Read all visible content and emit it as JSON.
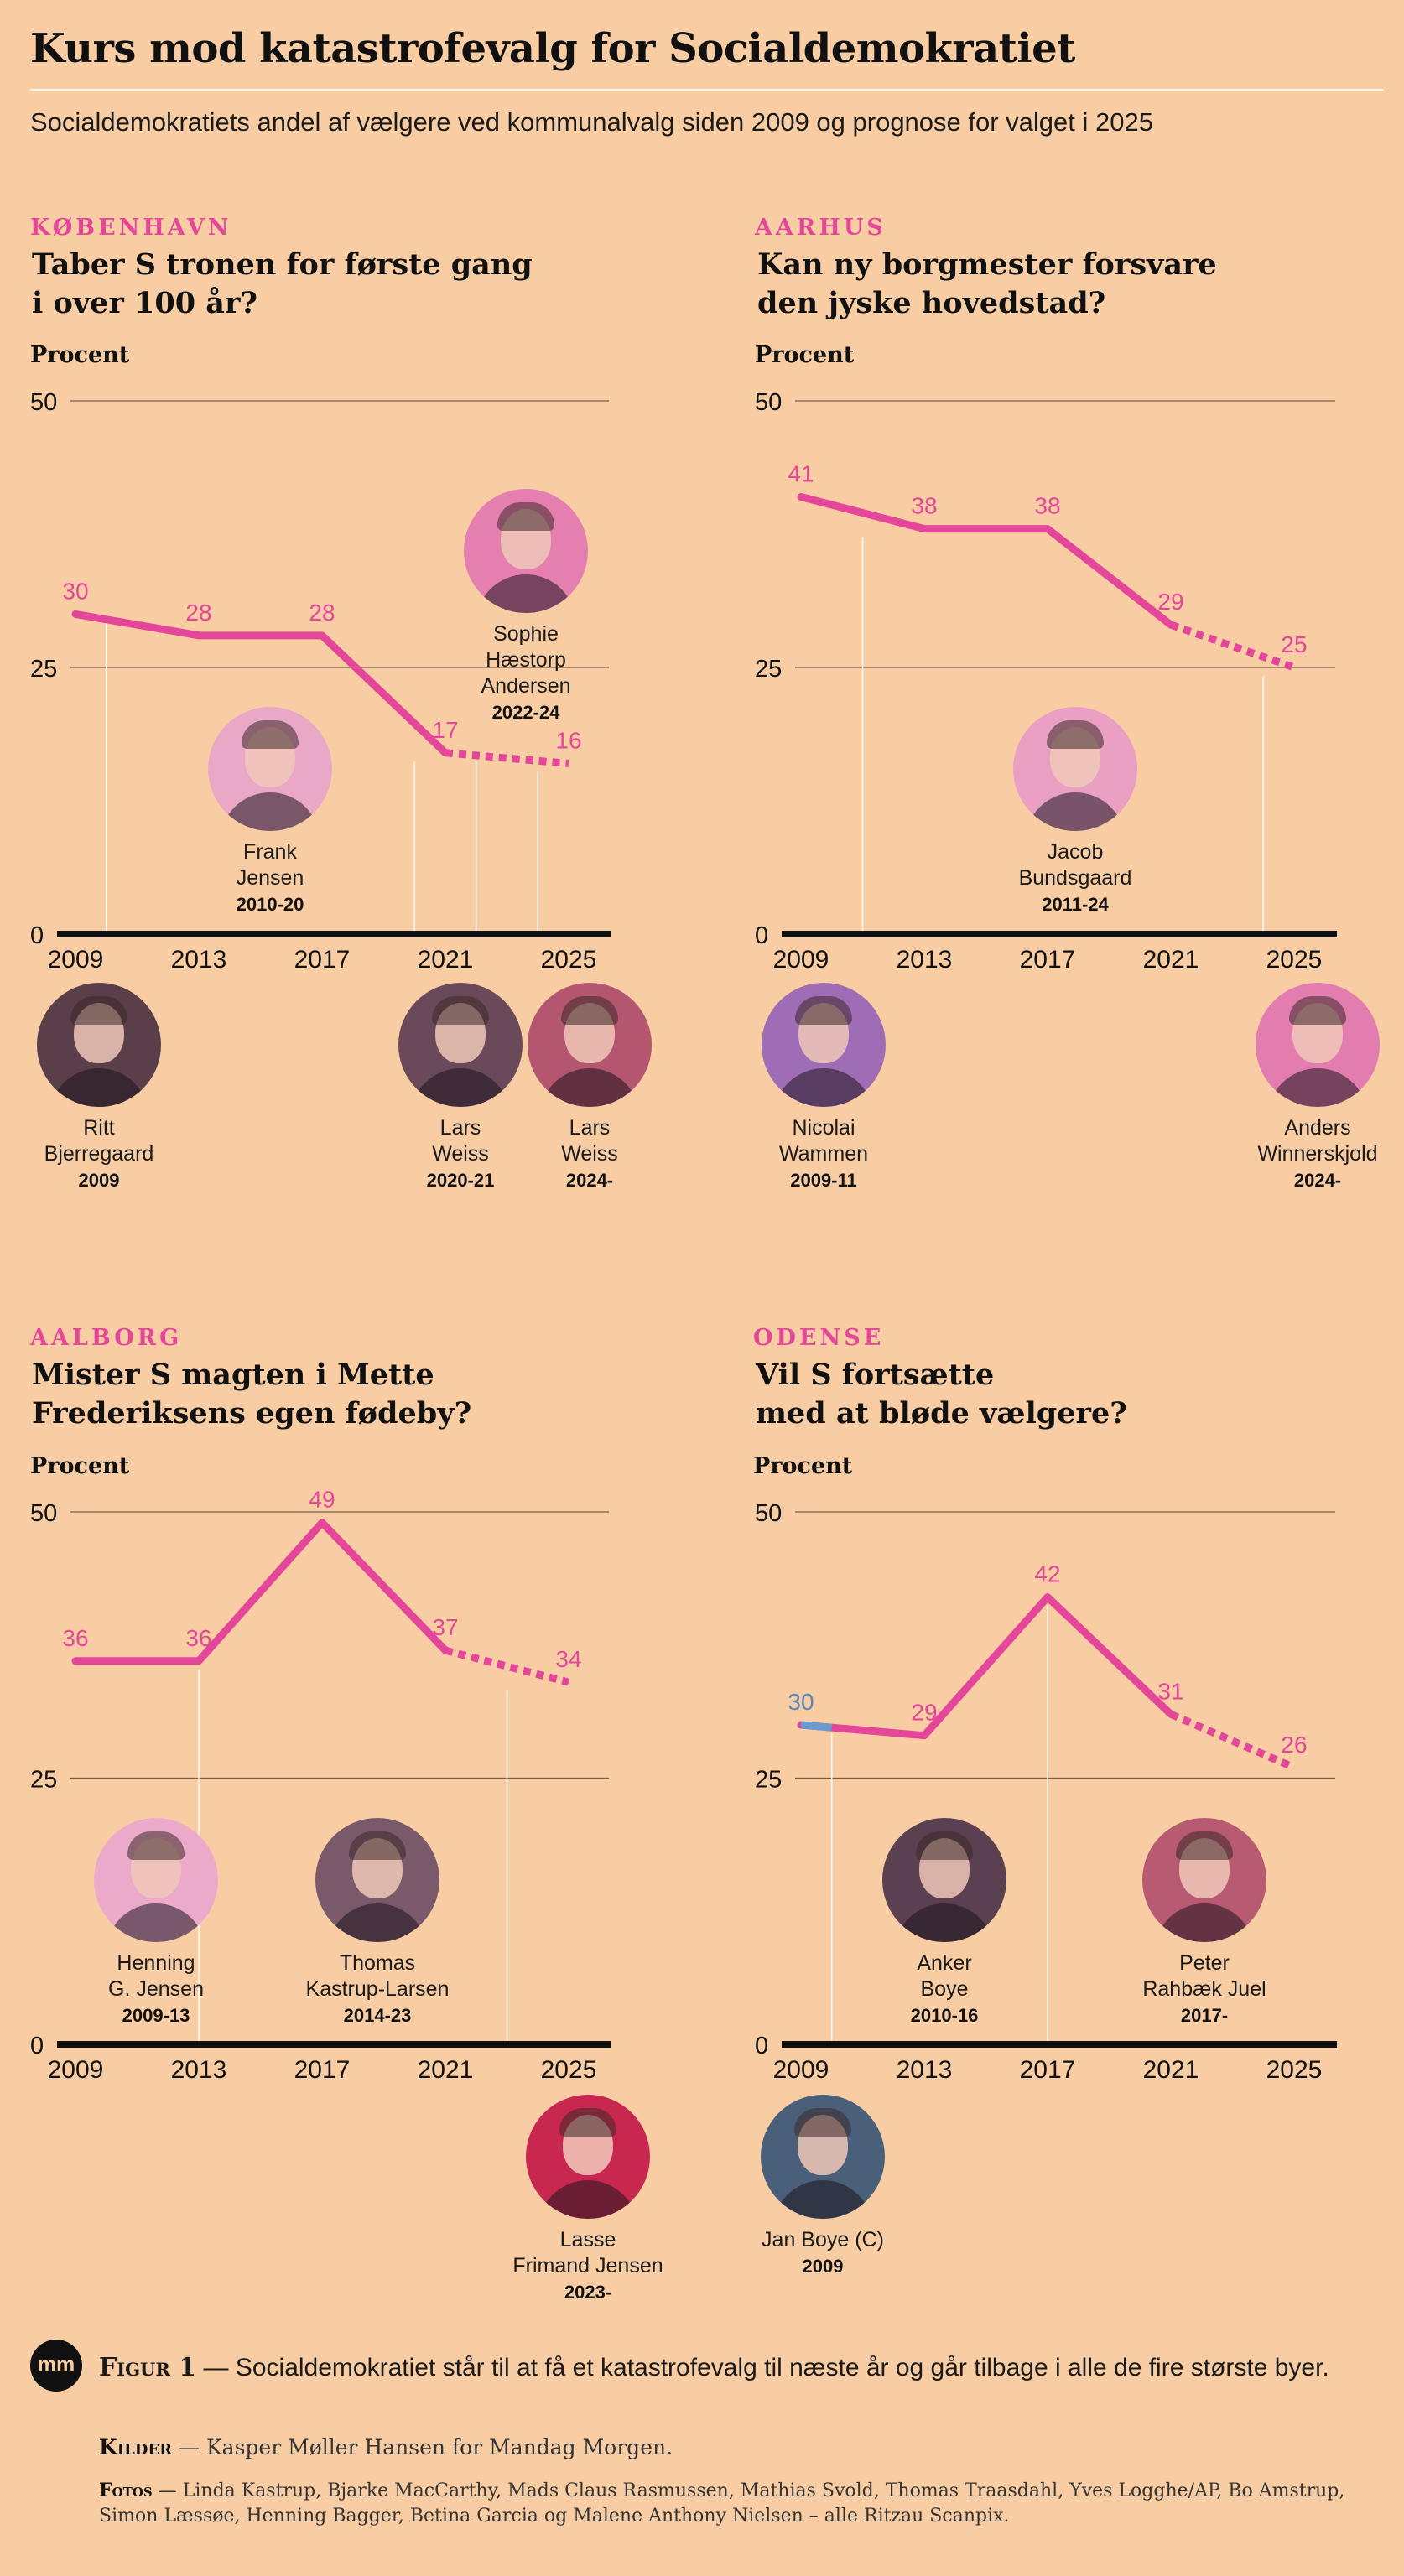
{
  "title": "Kurs mod katastrofevalg for Socialdemokratiet",
  "subtitle": "Socialdemokratiets andel af vælgere ved kommunalvalg siden 2009 og prognose for valget i 2025",
  "colors": {
    "background": "#f8cda3",
    "accent": "#e4479a",
    "conservative": "#6a9bd0",
    "axis": "#111111",
    "text": "#111111"
  },
  "panels": [
    {
      "city": "KØBENHAVN",
      "question": "Taber S tronen for første gang\ni over 100 år?",
      "unit": "Procent",
      "persons": [
        {
          "name": "Ritt\nBjerregaard",
          "years": "2009",
          "tone": "#5a3f4a",
          "icon": "portrait-photo"
        },
        {
          "name": "Frank\nJensen",
          "years": "2010-20",
          "tone": "#e9a9c6",
          "icon": "portrait-photo"
        },
        {
          "name": "Lars\nWeiss",
          "years": "2020-21",
          "tone": "#6a4a5a",
          "icon": "portrait-photo"
        },
        {
          "name": "Sophie\nHæstorp\nAndersen",
          "years": "2022-24",
          "tone": "#e57fb0",
          "icon": "portrait-photo"
        },
        {
          "name": "Lars\nWeiss",
          "years": "2024-",
          "tone": "#b4566f",
          "icon": "portrait-photo"
        }
      ]
    },
    {
      "city": "AARHUS",
      "question": "Kan ny borgmester forsvare\nden jyske hovedstad?",
      "unit": "Procent",
      "persons": [
        {
          "name": "Nicolai\nWammen",
          "years": "2009-11",
          "tone": "#9f6db5",
          "icon": "portrait-photo"
        },
        {
          "name": "Jacob\nBundsgaard",
          "years": "2011-24",
          "tone": "#e9a0c2",
          "icon": "portrait-photo"
        },
        {
          "name": "Anders\nWinnerskjold",
          "years": "2024-",
          "tone": "#e37db0",
          "icon": "portrait-photo"
        }
      ]
    },
    {
      "city": "AALBORG",
      "question": "Mister S magten i Mette\nFrederiksens egen fødeby?",
      "unit": "Procent",
      "persons": [
        {
          "name": "Henning\nG. Jensen",
          "years": "2009-13",
          "tone": "#ecaacb",
          "icon": "portrait-photo"
        },
        {
          "name": "Thomas\nKastrup-Larsen",
          "years": "2014-23",
          "tone": "#7a5a6a",
          "icon": "portrait-photo"
        },
        {
          "name": "Lasse\nFrimand Jensen",
          "years": "2023-",
          "tone": "#c8284f",
          "icon": "portrait-photo"
        }
      ]
    },
    {
      "city": "ODENSE",
      "question": "Vil S fortsætte\nmed at bløde vælgere?",
      "unit": "Procent",
      "persons": [
        {
          "name": "Anker\nBoye",
          "years": "2010-16",
          "tone": "#5a4050",
          "icon": "portrait-photo"
        },
        {
          "name": "Peter\nRahbæk Juel",
          "years": "2017-",
          "tone": "#b85a72",
          "icon": "portrait-photo"
        },
        {
          "name": "Jan Boye (C)",
          "years": "2009",
          "tone": "#4a5f7a",
          "icon": "portrait-photo"
        }
      ]
    }
  ],
  "chart_data": [
    {
      "type": "line",
      "title": "Taber S tronen for første gang i over 100 år?",
      "subtitle": "KØBENHAVN",
      "ylabel": "Procent",
      "ylim": [
        0,
        50
      ],
      "yticks": [
        0,
        25,
        50
      ],
      "xticks": [
        2009,
        2013,
        2017,
        2021,
        2025
      ],
      "grid": true,
      "x": [
        2009,
        2013,
        2017,
        2021,
        2025
      ],
      "values": [
        30,
        28,
        28,
        17,
        16
      ],
      "labels": [
        "30",
        "28",
        "28",
        "17",
        "16"
      ],
      "forecast_from": 2021,
      "mayor_changes": [
        2010,
        2020,
        2022,
        2024
      ]
    },
    {
      "type": "line",
      "title": "Kan ny borgmester forsvare den jyske hovedstad?",
      "subtitle": "AARHUS",
      "ylabel": "Procent",
      "ylim": [
        0,
        50
      ],
      "yticks": [
        0,
        25,
        50
      ],
      "xticks": [
        2009,
        2013,
        2017,
        2021,
        2025
      ],
      "grid": true,
      "x": [
        2009,
        2013,
        2017,
        2021,
        2025
      ],
      "values": [
        41,
        38,
        38,
        29,
        25
      ],
      "labels": [
        "41",
        "38",
        "38",
        "29",
        "25"
      ],
      "forecast_from": 2021,
      "mayor_changes": [
        2011,
        2024
      ]
    },
    {
      "type": "line",
      "title": "Mister S magten i Mette Frederiksens egen fødeby?",
      "subtitle": "AALBORG",
      "ylabel": "Procent",
      "ylim": [
        0,
        50
      ],
      "yticks": [
        0,
        25,
        50
      ],
      "xticks": [
        2009,
        2013,
        2017,
        2021,
        2025
      ],
      "grid": true,
      "x": [
        2009,
        2013,
        2017,
        2021,
        2025
      ],
      "values": [
        36,
        36,
        49,
        37,
        34
      ],
      "labels": [
        "36",
        "36",
        "49",
        "37",
        "34"
      ],
      "forecast_from": 2021,
      "mayor_changes": [
        2013,
        2023
      ]
    },
    {
      "type": "line",
      "title": "Vil S fortsætte med at bløde vælgere?",
      "subtitle": "ODENSE",
      "ylabel": "Procent",
      "ylim": [
        0,
        50
      ],
      "yticks": [
        0,
        25,
        50
      ],
      "xticks": [
        2009,
        2013,
        2017,
        2021,
        2025
      ],
      "grid": true,
      "x": [
        2009,
        2013,
        2017,
        2021,
        2025
      ],
      "values": [
        30,
        29,
        42,
        31,
        26
      ],
      "labels": [
        "30",
        "29",
        "42",
        "31",
        "26"
      ],
      "forecast_from": 2021,
      "mayor_changes": [
        2010,
        2017
      ],
      "conservative_mayor_period": [
        2009,
        2010
      ]
    }
  ],
  "footer": {
    "logo_text": "mm",
    "figure_label": "Figur 1",
    "figure_text": "Socialdemokratiet står til at få et katastrofevalg til næste år og går tilbage i alle de fire største byer.",
    "sources_label": "Kilder",
    "sources_text": "Kasper Møller Hansen for Mandag Morgen.",
    "photos_label": "Fotos",
    "photos_text": "Linda Kastrup, Bjarke MacCarthy, Mads Claus Rasmussen, Mathias Svold, Thomas Traasdahl, Yves Logghe/AP, Bo Amstrup, Simon Læssøe, Henning Bagger, Betina Garcia og Malene Anthony Nielsen – alle Ritzau Scanpix."
  }
}
